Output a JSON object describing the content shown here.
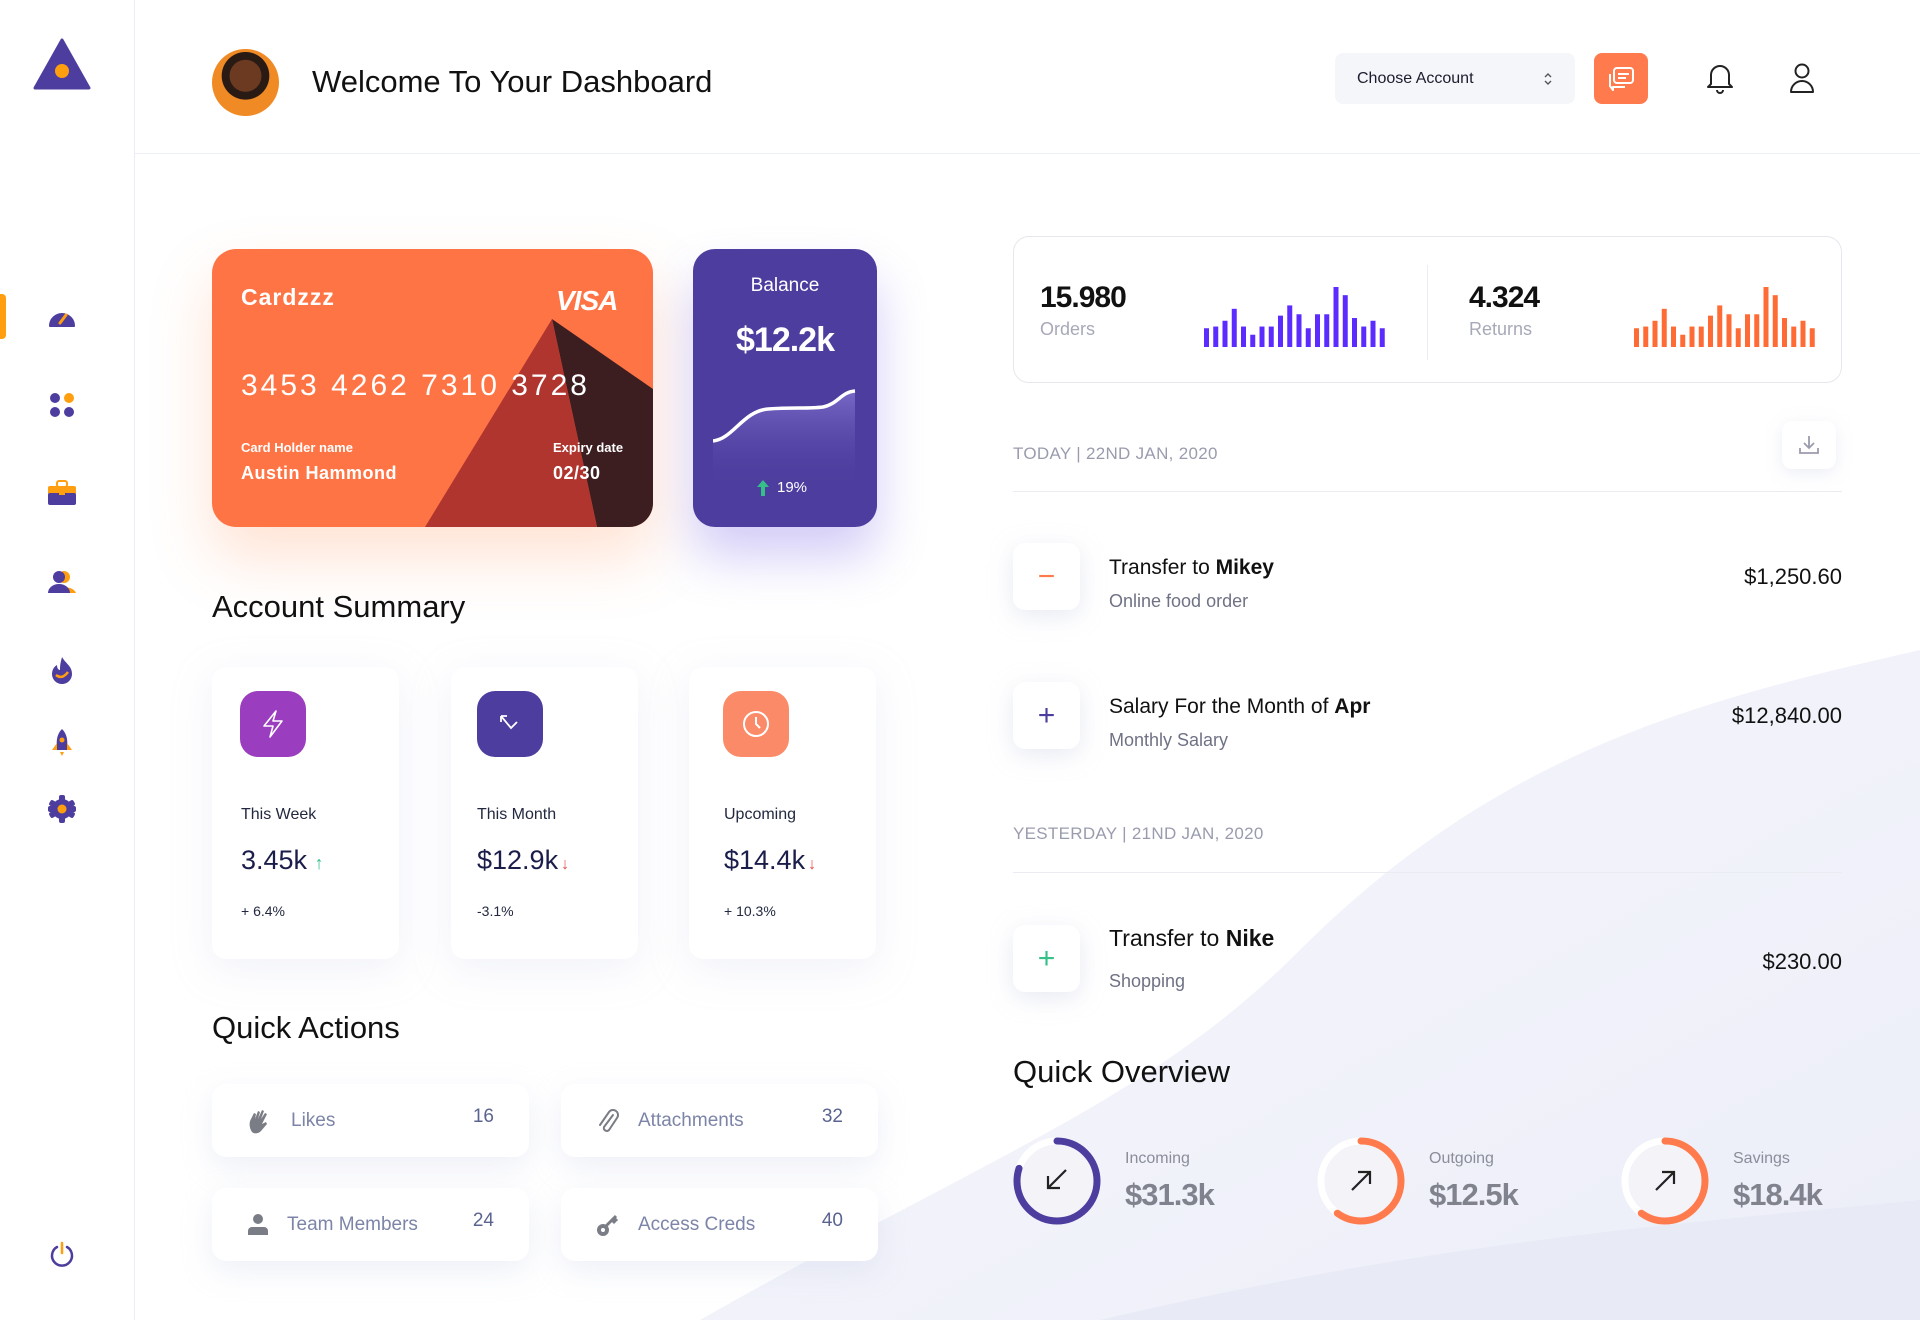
{
  "header": {
    "title": "Welcome To Your Dashboard",
    "account_select": {
      "value": "Choose Account"
    }
  },
  "sidebar": {
    "items": [
      {
        "icon": "dashboard-gauge-icon",
        "active": true
      },
      {
        "icon": "apps-grid-icon"
      },
      {
        "icon": "briefcase-icon"
      },
      {
        "icon": "users-icon"
      },
      {
        "icon": "fire-icon"
      },
      {
        "icon": "rocket-icon"
      },
      {
        "icon": "settings-gear-icon"
      }
    ],
    "logout_icon": "power-icon"
  },
  "colors": {
    "primary": "#4d3d9e",
    "accent": "#ff7445",
    "active": "#ff9e0f",
    "orders_bar": "#5b2bff",
    "returns_bar": "#ff6b35"
  },
  "card": {
    "name": "Cardzzz",
    "brand": "VISA",
    "number": "3453 4262 7310 3728",
    "holder_label": "Card Holder name",
    "holder": "Austin Hammond",
    "expiry_label": "Expiry date",
    "expiry": "02/30"
  },
  "balance": {
    "label": "Balance",
    "value": "$12.2k",
    "change": "19%"
  },
  "account_summary": {
    "title": "Account Summary",
    "items": [
      {
        "label": "This Week",
        "value": "3.45k",
        "trend": "up",
        "change": "+ 6.4%",
        "color": "#9b3dbf"
      },
      {
        "label": "This Month",
        "value": "$12.9k",
        "trend": "down",
        "change": "-3.1%",
        "color": "#4d3d9e"
      },
      {
        "label": "Upcoming",
        "value": "$14.4k",
        "trend": "down",
        "change": "+ 10.3%",
        "color": "#fb8a68"
      }
    ]
  },
  "quick_actions": {
    "title": "Quick Actions",
    "items": [
      {
        "label": "Likes",
        "count": "16",
        "icon": "hand-wave-icon"
      },
      {
        "label": "Attachments",
        "count": "32",
        "icon": "paperclip-icon"
      },
      {
        "label": "Team Members",
        "count": "24",
        "icon": "user-icon"
      },
      {
        "label": "Access Creds",
        "count": "40",
        "icon": "key-icon"
      }
    ]
  },
  "stats": {
    "orders": {
      "value": "15.980",
      "label": "Orders",
      "bars": [
        55,
        60,
        77,
        112,
        60,
        36,
        60,
        60,
        92,
        122,
        96,
        55,
        96,
        96,
        176,
        152,
        85,
        60,
        77,
        55
      ]
    },
    "returns": {
      "value": "4.324",
      "label": "Returns",
      "bars": [
        55,
        60,
        77,
        112,
        60,
        36,
        60,
        60,
        92,
        122,
        96,
        55,
        96,
        96,
        176,
        152,
        85,
        60,
        77,
        55
      ]
    }
  },
  "transactions": {
    "groups": [
      {
        "date": "TODAY | 22ND JAN, 2020",
        "items": [
          {
            "type": "minus",
            "title_prefix": "Transfer to ",
            "title_bold": "Mikey",
            "subtitle": "Online food order",
            "amount": "$1,250.60"
          },
          {
            "type": "plus",
            "title_prefix": "Salary For the Month of ",
            "title_bold": "Apr",
            "subtitle": "Monthly Salary",
            "amount": "$12,840.00"
          }
        ]
      },
      {
        "date": "YESTERDAY | 21ND JAN, 2020",
        "items": [
          {
            "type": "plus",
            "title_prefix": "Transfer to ",
            "title_bold": "Nike",
            "subtitle": "Shopping",
            "amount": "$230.00"
          }
        ]
      }
    ]
  },
  "quick_overview": {
    "title": "Quick Overview",
    "items": [
      {
        "label": "Incoming",
        "value": "$31.3k",
        "progress": 0.8,
        "color": "#4d3d9e",
        "direction": "down-left"
      },
      {
        "label": "Outgoing",
        "value": "$12.5k",
        "progress": 0.6,
        "color": "#ff7a4c",
        "direction": "up-right"
      },
      {
        "label": "Savings",
        "value": "$18.4k",
        "progress": 0.6,
        "color": "#ff7a4c",
        "direction": "up-right"
      }
    ]
  }
}
